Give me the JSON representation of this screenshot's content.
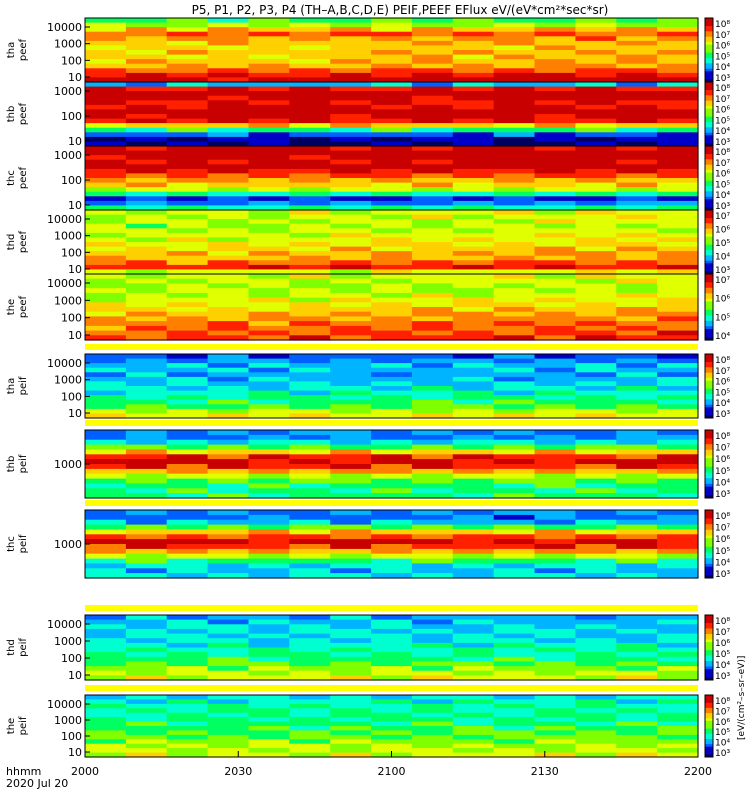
{
  "chart_data": {
    "type": "heatmap",
    "title": "P5, P1, P2, P3, P4 (TH–A,B,C,D,E) PEIF,PEEF EFlux eV/(eV*cm²*sec*sr)",
    "x_labels": [
      "2000",
      "2030",
      "2100",
      "2130",
      "2200"
    ],
    "x_axis_label": "hhmm",
    "date_label": "2020 Jul 20",
    "colorbar_label": "[eV/(cm²–s–sr–eV)]",
    "panels": [
      {
        "label1": "tha",
        "label2": "peef",
        "y_ticks": [
          "10000",
          "1000",
          "100",
          "10"
        ],
        "cb_ticks": [
          "10⁸",
          "10⁷",
          "10⁶",
          "10⁵",
          "10⁴",
          "10³"
        ],
        "profile": [
          0.45,
          0.55,
          0.7,
          0.8,
          0.75,
          0.7,
          0.68,
          0.7,
          0.68,
          0.7,
          0.72,
          0.8,
          0.9,
          0.95
        ],
        "drift": 0.05
      },
      {
        "label1": "thb",
        "label2": "peef",
        "y_ticks": [
          "1000",
          "100",
          "10"
        ],
        "cb_ticks": [
          "10⁸",
          "10⁷",
          "10⁶",
          "10⁵",
          "10⁴",
          "10³"
        ],
        "profile": [
          0.3,
          0.9,
          1.0,
          0.97,
          0.9,
          0.95,
          1.0,
          0.97,
          0.9,
          0.7,
          0.45,
          0.2,
          0.1,
          0.08
        ],
        "drift": 0.0
      },
      {
        "label1": "thc",
        "label2": "peef",
        "y_ticks": [
          "1000",
          "100",
          "10"
        ],
        "cb_ticks": [
          "10⁸",
          "10⁷",
          "10⁶",
          "10⁵",
          "10⁴",
          "10³"
        ],
        "profile": [
          0.95,
          1.0,
          0.97,
          0.94,
          0.98,
          0.9,
          0.85,
          0.75,
          0.7,
          0.6,
          0.4,
          0.15,
          0.25,
          0.4
        ],
        "drift": 0.0
      },
      {
        "label1": "thd",
        "label2": "peef",
        "y_ticks": [
          "10000",
          "1000",
          "100",
          "10"
        ],
        "cb_ticks": [
          "10⁷",
          "10⁶",
          "10⁵",
          "10⁴",
          "10³"
        ],
        "profile": [
          0.6,
          0.6,
          0.58,
          0.55,
          0.58,
          0.6,
          0.62,
          0.65,
          0.68,
          0.7,
          0.72,
          0.8,
          0.88,
          0.6
        ],
        "drift": 0.05
      },
      {
        "label1": "the",
        "label2": "peef",
        "y_ticks": [
          "10000",
          "1000",
          "100",
          "10"
        ],
        "cb_ticks": [
          "10⁷",
          "10⁶",
          "10⁵",
          "10⁴"
        ],
        "profile": [
          0.6,
          0.58,
          0.55,
          0.57,
          0.6,
          0.62,
          0.65,
          0.68,
          0.72,
          0.75,
          0.78,
          0.8,
          0.82,
          0.85
        ],
        "drift": 0.05
      },
      {
        "label1": "tha",
        "label2": "peif",
        "y_ticks": [
          "10000",
          "1000",
          "100",
          "10"
        ],
        "cb_ticks": [
          "10⁸",
          "10⁷",
          "10⁶",
          "10⁵",
          "10⁴",
          "10³"
        ],
        "profile": [
          0.2,
          0.25,
          0.3,
          0.3,
          0.28,
          0.3,
          0.33,
          0.36,
          0.38,
          0.42,
          0.45,
          0.5,
          0.6,
          0.65
        ],
        "drift": 0.0
      },
      {
        "label1": "thb",
        "label2": "peif",
        "y_ticks": [
          "1000"
        ],
        "cb_ticks": [
          "10⁸",
          "10⁷",
          "10⁶",
          "10⁵",
          "10⁴",
          "10³"
        ],
        "profile": [
          0.25,
          0.25,
          0.35,
          0.5,
          0.7,
          0.88,
          0.95,
          0.88,
          0.75,
          0.6,
          0.5,
          0.45,
          0.45,
          0.45
        ],
        "drift": 0.0
      },
      {
        "label1": "thc",
        "label2": "peif",
        "y_ticks": [
          "1000"
        ],
        "cb_ticks": [
          "10⁸",
          "10⁷",
          "10⁶",
          "10⁵",
          "10⁴",
          "10³"
        ],
        "profile": [
          0.25,
          0.22,
          0.3,
          0.5,
          0.7,
          0.85,
          0.95,
          0.88,
          0.75,
          0.6,
          0.45,
          0.35,
          0.3,
          0.35
        ],
        "drift": 0.0
      },
      {
        "label1": "thd",
        "label2": "peif",
        "y_ticks": [
          "10000",
          "1000",
          "100",
          "10"
        ],
        "cb_ticks": [
          "10⁸",
          "10⁷",
          "10⁶",
          "10⁵",
          "10⁴",
          "10³"
        ],
        "profile": [
          0.28,
          0.3,
          0.33,
          0.35,
          0.33,
          0.35,
          0.38,
          0.4,
          0.42,
          0.45,
          0.5,
          0.55,
          0.6,
          0.62
        ],
        "drift": 0.0
      },
      {
        "label1": "the",
        "label2": "peif",
        "y_ticks": [
          "10000",
          "1000",
          "100",
          "10"
        ],
        "cb_ticks": [
          "10⁸",
          "10⁷",
          "10⁶",
          "10⁵",
          "10⁴",
          "10³"
        ],
        "profile": [
          0.35,
          0.38,
          0.4,
          0.42,
          0.42,
          0.44,
          0.45,
          0.47,
          0.5,
          0.52,
          0.55,
          0.58,
          0.6,
          0.62
        ],
        "drift": 0.0
      }
    ]
  }
}
